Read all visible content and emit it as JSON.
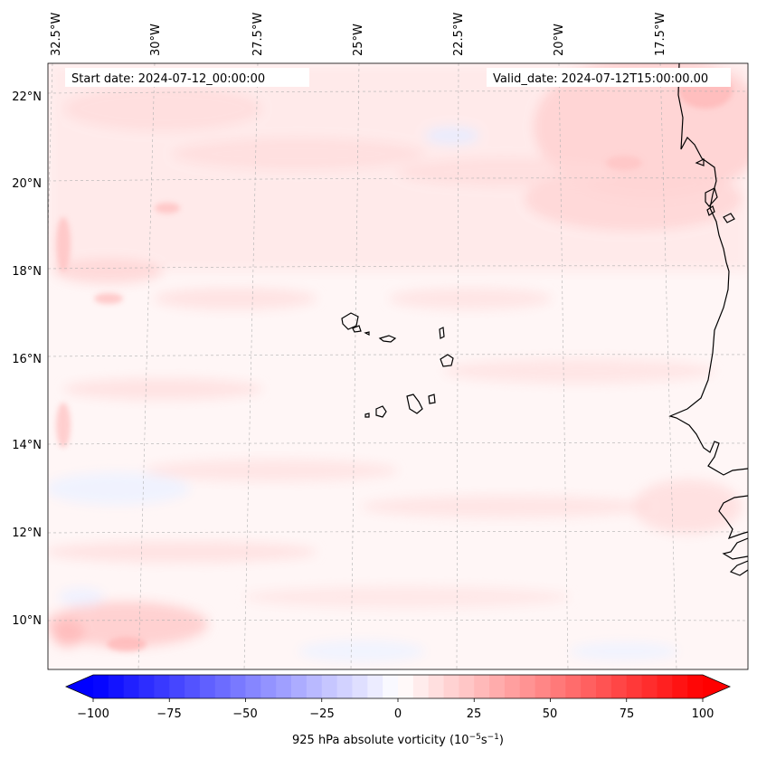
{
  "header": {
    "start_date": "Start date: 2024-07-12_00:00:00",
    "valid_date": "Valid_date: 2024-07-12T15:00:00.00"
  },
  "map": {
    "lon_labels": [
      "32.5°W",
      "30°W",
      "27.5°W",
      "25°W",
      "22.5°W",
      "20°W",
      "17.5°W"
    ],
    "lat_labels": [
      "22°N",
      "20°N",
      "18°N",
      "16°N",
      "14°N",
      "12°N",
      "10°N"
    ],
    "field": "925 hPa absolute vorticity",
    "coastline_color": "#000000",
    "gridline_color": "#b0b0b0"
  },
  "colorbar": {
    "ticks": [
      "−100",
      "−75",
      "−50",
      "−25",
      "0",
      "25",
      "50",
      "75",
      "100"
    ],
    "label_main": "925 hPa absolute vorticity (10",
    "label_exp1": "−5",
    "label_mid": "s",
    "label_exp2": "−1",
    "label_end": ")",
    "range": [
      -100,
      100
    ],
    "step": 5,
    "colormap": "bwr",
    "min_color": "#0000ff",
    "mid_color": "#ffffff",
    "max_color": "#ff0000"
  }
}
